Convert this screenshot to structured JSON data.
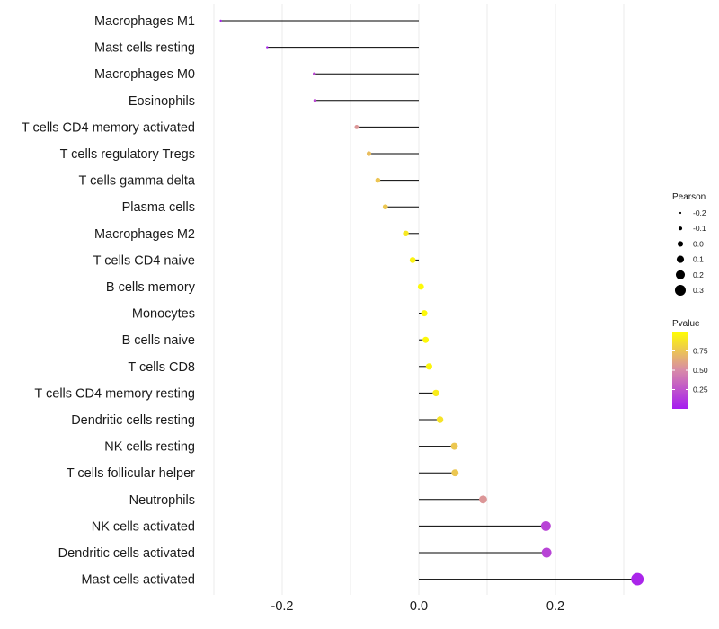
{
  "chart_data": {
    "type": "lollipop",
    "xlabel": "",
    "ylabel": "",
    "xlim": [
      -0.3,
      0.32
    ],
    "x_ticks": [
      -0.2,
      0.0,
      0.2
    ],
    "x_tick_labels": [
      "-0.2",
      "0.0",
      "0.2"
    ],
    "categories": [
      "Macrophages M1",
      "Mast cells resting",
      "Macrophages M0",
      "Eosinophils",
      "T cells CD4 memory activated",
      "T cells regulatory  Tregs ",
      "T cells gamma delta",
      "Plasma cells",
      "Macrophages M2",
      "T cells CD4 naive",
      "B cells memory",
      "Monocytes",
      "B cells naive",
      "T cells CD8",
      "T cells CD4 memory resting",
      "Dendritic cells resting",
      "NK cells resting",
      "T cells follicular helper",
      "Neutrophils",
      "NK cells activated",
      "Dendritic cells activated",
      "Mast cells activated"
    ],
    "values": [
      -0.29,
      -0.222,
      -0.153,
      -0.152,
      -0.091,
      -0.073,
      -0.06,
      -0.049,
      -0.019,
      -0.009,
      0.003,
      0.008,
      0.01,
      0.015,
      0.025,
      0.031,
      0.052,
      0.053,
      0.094,
      0.186,
      0.187,
      0.32
    ],
    "pvalues": [
      0.01,
      0.02,
      0.2,
      0.2,
      0.55,
      0.72,
      0.75,
      0.76,
      0.9,
      0.95,
      0.98,
      0.97,
      0.97,
      0.96,
      0.92,
      0.88,
      0.76,
      0.76,
      0.55,
      0.18,
      0.18,
      0.04
    ],
    "legend_size": {
      "title": "Pearson",
      "values": [
        -0.2,
        -0.1,
        0.0,
        0.1,
        0.2,
        0.3
      ],
      "labels": [
        "-0.2",
        "-0.1",
        "0.0",
        "0.1",
        "0.2",
        "0.3"
      ]
    },
    "legend_color": {
      "title": "Pvalue",
      "range": [
        0.0,
        1.0
      ],
      "ticks": [
        0.25,
        0.5,
        0.75
      ],
      "tick_labels": [
        "0.25",
        "0.50",
        "0.75"
      ],
      "low_color": "#a61cf0",
      "mid_color": "#d88aa8",
      "high_color": "#ffff00"
    },
    "grid": true,
    "line_color": "#000000"
  }
}
